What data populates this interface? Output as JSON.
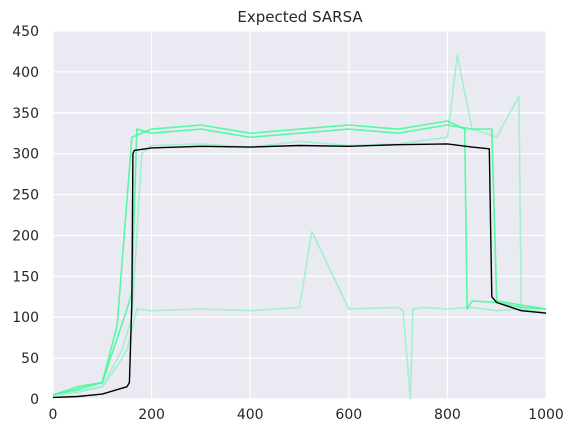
{
  "chart_data": {
    "type": "line",
    "title": "Expected SARSA",
    "xlabel": "",
    "ylabel": "",
    "xlim": [
      0,
      1000
    ],
    "ylim": [
      0,
      450
    ],
    "xticks": [
      0,
      200,
      400,
      600,
      800,
      1000
    ],
    "yticks": [
      0,
      50,
      100,
      150,
      200,
      250,
      300,
      350,
      400,
      450
    ],
    "grid": true,
    "legend": "none",
    "colors": {
      "background": "#eaeaf2",
      "grid": "#ffffff",
      "bright_runs": "#3dfc96",
      "pale_runs": "#98f0c8",
      "mean": "#000000"
    },
    "series": [
      {
        "role": "run",
        "color": "#98f0c8",
        "x": [
          0,
          50,
          100,
          130,
          150,
          170,
          200,
          300,
          400,
          500,
          525,
          600,
          700,
          710,
          725,
          730,
          750,
          800,
          850,
          900,
          950,
          1000
        ],
        "y": [
          5,
          8,
          15,
          40,
          60,
          110,
          108,
          110,
          108,
          112,
          205,
          110,
          112,
          108,
          0,
          110,
          112,
          110,
          112,
          108,
          110,
          105
        ]
      },
      {
        "role": "run",
        "color": "#98f0c8",
        "x": [
          0,
          50,
          100,
          140,
          160,
          180,
          200,
          300,
          400,
          500,
          600,
          700,
          800,
          820,
          850,
          900,
          945,
          950,
          1000
        ],
        "y": [
          5,
          10,
          15,
          60,
          100,
          300,
          310,
          312,
          308,
          315,
          310,
          312,
          320,
          420,
          330,
          320,
          370,
          108,
          105
        ]
      },
      {
        "role": "run",
        "color": "#3dfc96",
        "x": [
          0,
          50,
          100,
          130,
          160,
          200,
          300,
          400,
          500,
          600,
          700,
          800,
          835,
          840,
          850,
          900,
          950,
          1000
        ],
        "y": [
          5,
          15,
          20,
          90,
          320,
          330,
          335,
          325,
          330,
          335,
          330,
          340,
          330,
          110,
          120,
          118,
          112,
          110
        ]
      },
      {
        "role": "run",
        "color": "#3dfc96",
        "x": [
          0,
          50,
          100,
          150,
          160,
          170,
          200,
          300,
          400,
          500,
          600,
          700,
          800,
          850,
          890,
          900,
          950,
          1000
        ],
        "y": [
          5,
          12,
          20,
          110,
          130,
          330,
          325,
          330,
          320,
          325,
          330,
          325,
          335,
          330,
          330,
          120,
          115,
          110
        ]
      },
      {
        "role": "mean",
        "color": "#000000",
        "x": [
          0,
          50,
          100,
          150,
          155,
          160,
          162,
          165,
          200,
          300,
          400,
          500,
          600,
          700,
          800,
          850,
          885,
          890,
          900,
          950,
          1000
        ],
        "y": [
          2,
          3,
          6,
          15,
          20,
          120,
          300,
          304,
          307,
          309,
          308,
          310,
          309,
          311,
          312,
          308,
          306,
          125,
          118,
          108,
          105
        ]
      }
    ]
  }
}
